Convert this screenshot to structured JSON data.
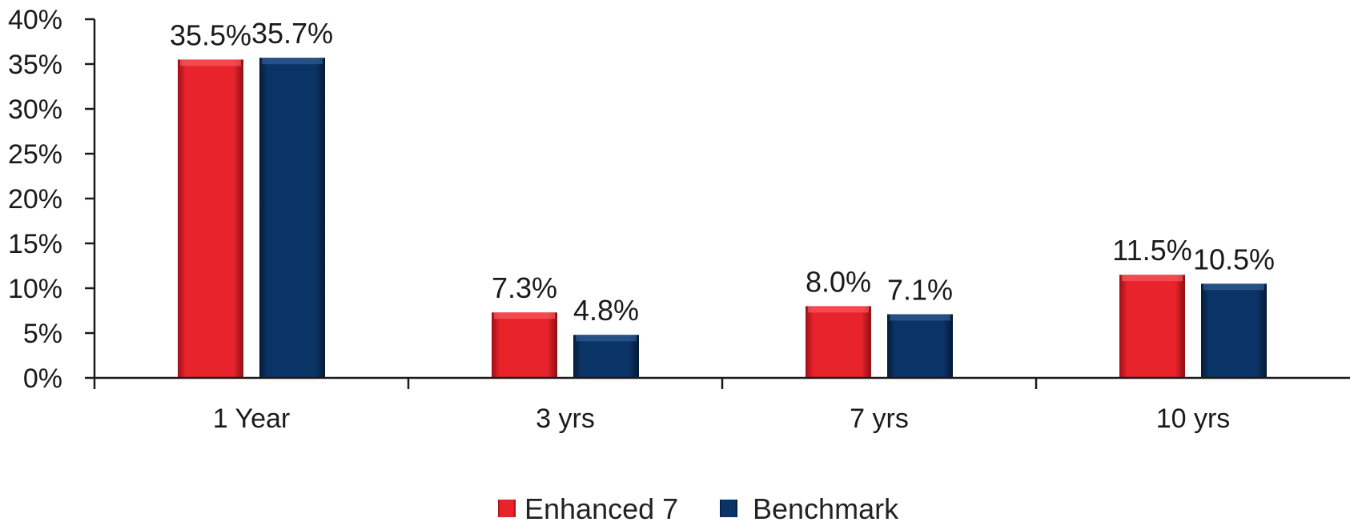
{
  "chart_data": {
    "type": "bar",
    "categories": [
      "1 Year",
      "3 yrs",
      "7 yrs",
      "10 yrs"
    ],
    "series": [
      {
        "name": "Enhanced 7",
        "values": [
          35.5,
          7.3,
          8.0,
          11.5
        ],
        "labels": [
          "35.5%",
          "7.3%",
          "8.0%",
          "11.5%"
        ],
        "color": "#e8232b"
      },
      {
        "name": "Benchmark",
        "values": [
          35.7,
          4.8,
          7.1,
          10.5
        ],
        "labels": [
          "35.7%",
          "4.8%",
          "7.1%",
          "10.5%"
        ],
        "color": "#0b3466"
      }
    ],
    "ylim": [
      0,
      40
    ],
    "y_ticks": [
      "0%",
      "5%",
      "10%",
      "15%",
      "20%",
      "25%",
      "30%",
      "35%",
      "40%"
    ],
    "title": "",
    "xlabel": "",
    "ylabel": "",
    "grid": false,
    "legend_position": "bottom-center"
  }
}
